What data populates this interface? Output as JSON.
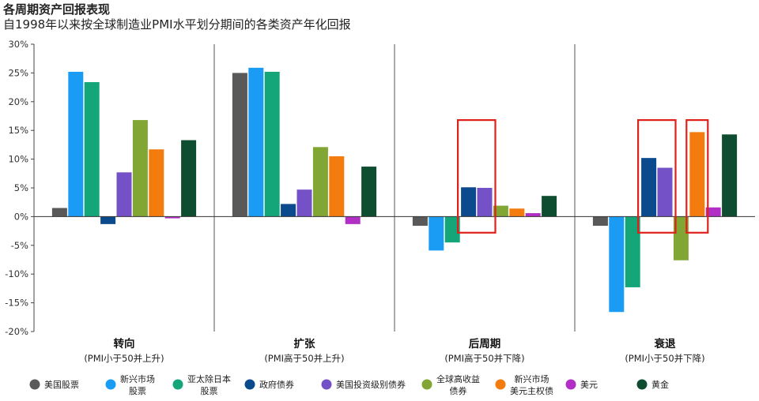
{
  "header": {
    "title": "各周期资产回报表现",
    "subtitle": "自1998年以来按全球制造业PMI水平划分期间的各类资产年化回报"
  },
  "chart_data": {
    "type": "bar",
    "title": "各周期资产回报表现",
    "subtitle": "自1998年以来按全球制造业PMI水平划分期间的各类资产年化回报",
    "ylim": [
      -20,
      30
    ],
    "yticks": [
      -20,
      -15,
      -10,
      -5,
      0,
      5,
      10,
      15,
      20,
      25,
      30
    ],
    "ytick_labels": [
      "-20%",
      "-15%",
      "-10%",
      "-5%",
      "0%",
      "5%",
      "10%",
      "15%",
      "20%",
      "25%",
      "30%"
    ],
    "categories": [
      "转向",
      "扩张",
      "后周期",
      "衰退"
    ],
    "category_sublabels": [
      "(PMI小于50并上升)",
      "(PMI高于50并上升)",
      "(PMI高于50并下降)",
      "(PMI小于50并下降)"
    ],
    "series": [
      {
        "name": "美国股票",
        "color": "#595959",
        "values": [
          1.5,
          25.0,
          -1.6,
          -1.6
        ]
      },
      {
        "name": "新兴市场股票",
        "color": "#1a9cf5",
        "values": [
          25.2,
          25.9,
          -5.9,
          -16.6
        ]
      },
      {
        "name": "亚太除日本股票",
        "color": "#14a579",
        "values": [
          23.4,
          25.2,
          -4.5,
          -12.3
        ]
      },
      {
        "name": "政府债券",
        "color": "#0b4a8c",
        "values": [
          -1.3,
          2.2,
          5.1,
          10.2
        ]
      },
      {
        "name": "美国投资级别债券",
        "color": "#7451c7",
        "values": [
          7.7,
          4.7,
          5.0,
          8.5
        ]
      },
      {
        "name": "全球高收益债券",
        "color": "#82a634",
        "values": [
          16.8,
          12.1,
          1.9,
          -7.6
        ]
      },
      {
        "name": "新兴市场美元主权债",
        "color": "#f47c0e",
        "values": [
          11.7,
          10.5,
          1.4,
          14.7
        ]
      },
      {
        "name": "美元",
        "color": "#b12fc5",
        "values": [
          -0.3,
          -1.3,
          0.6,
          1.6
        ]
      },
      {
        "name": "黄金",
        "color": "#0e4d2f",
        "values": [
          13.3,
          8.7,
          3.6,
          14.3
        ]
      }
    ],
    "legend": [
      {
        "label": [
          "美国股票"
        ]
      },
      {
        "label": [
          "新兴市场",
          "股票"
        ]
      },
      {
        "label": [
          "亚太除日本",
          "股票"
        ]
      },
      {
        "label": [
          "政府债券"
        ]
      },
      {
        "label": [
          "美国投资级别债券"
        ]
      },
      {
        "label": [
          "全球高收益",
          "债券"
        ]
      },
      {
        "label": [
          "新兴市场",
          "美元主权债"
        ]
      },
      {
        "label": [
          "美元"
        ]
      },
      {
        "label": [
          "黄金"
        ]
      }
    ],
    "highlights": [
      {
        "category": "后周期",
        "series_from": 3,
        "series_to": 4
      },
      {
        "category": "衰退",
        "series_from": 3,
        "series_to": 4
      },
      {
        "category": "衰退",
        "series_from": 6,
        "series_to": 6
      }
    ],
    "highlight_color": "#e0201b",
    "legend_position": "bottom",
    "grid": false
  }
}
